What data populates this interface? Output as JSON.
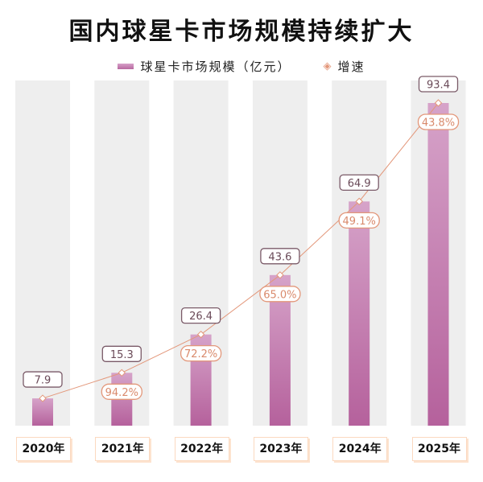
{
  "chart_data": {
    "type": "bar",
    "title": "国内球星卡市场规模持续扩大",
    "categories": [
      "2020年",
      "2021年",
      "2022年",
      "2023年",
      "2024年",
      "2025年"
    ],
    "series": [
      {
        "name": "球星卡市场规模（亿元）",
        "type": "bar",
        "values": [
          7.9,
          15.3,
          26.4,
          43.6,
          64.9,
          93.4
        ],
        "labels": [
          "7.9",
          "15.3",
          "26.4",
          "43.6",
          "64.9",
          "93.4"
        ]
      },
      {
        "name": "增速",
        "type": "line",
        "values": [
          null,
          94.2,
          72.2,
          65.0,
          49.1,
          43.8
        ],
        "labels": [
          "",
          "94.2%",
          "72.2%",
          "65.0%",
          "49.1%",
          "43.8%"
        ]
      }
    ],
    "legend": "top",
    "grid": false,
    "colors": {
      "bar_top": "#d6a3c9",
      "bar_bottom": "#b5619c",
      "line": "#e3977a",
      "column_bg": "#eeeeee",
      "value_border": "#7a5a68"
    }
  }
}
